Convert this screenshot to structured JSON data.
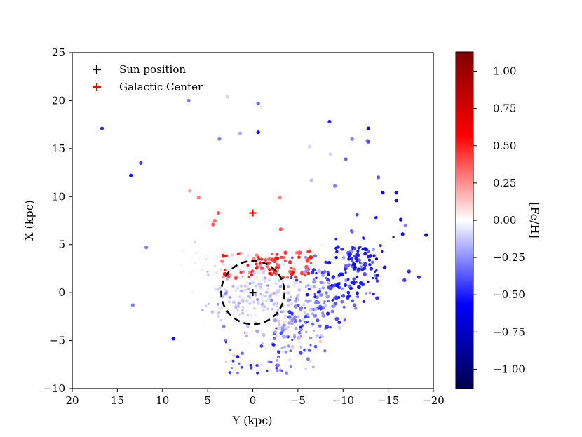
{
  "chart_data": {
    "type": "scatter",
    "title": "",
    "xlabel": "Y (kpc)",
    "ylabel": "X (kpc)",
    "xlim": [
      20,
      -20
    ],
    "ylim": [
      -10,
      25
    ],
    "xticks": [
      20,
      15,
      10,
      5,
      0,
      -5,
      -10,
      -15,
      -20
    ],
    "xtick_labels": [
      "20",
      "15",
      "10",
      "5",
      "0",
      "−5",
      "−10",
      "−15",
      "−20"
    ],
    "yticks": [
      -10,
      -5,
      0,
      5,
      10,
      15,
      20,
      25
    ],
    "ytick_labels": [
      "−10",
      "−5",
      "0",
      "5",
      "10",
      "15",
      "20",
      "25"
    ],
    "grid": false,
    "legend_position": "top-left",
    "legend": [
      {
        "label": "Sun position",
        "marker": "plus",
        "color": "#000000"
      },
      {
        "label": "Galactic Center",
        "marker": "plus",
        "color": "#ff0000"
      }
    ],
    "markers": [
      {
        "name": "Sun position",
        "x": 0,
        "y": 0,
        "color": "#000000"
      },
      {
        "name": "Galactic Center",
        "x": 0,
        "y": 8.3,
        "color": "#ff0000"
      }
    ],
    "circle": {
      "center_x": 0,
      "center_y": 0,
      "radius": 3.5,
      "style": "dashed",
      "color": "#000000"
    },
    "colorbar": {
      "label": "[Fe/H]",
      "min": -1.13,
      "max": 1.13,
      "ticks": [
        -1.0,
        -0.75,
        -0.5,
        -0.25,
        0.0,
        0.25,
        0.5,
        0.75,
        1.0
      ],
      "tick_labels": [
        "−1.00",
        "−0.75",
        "−0.50",
        "−0.25",
        "0.00",
        "0.25",
        "0.50",
        "0.75",
        "1.00"
      ],
      "colormap": "seismic",
      "colormap_stops": [
        "#00004d",
        "#0000ff",
        "#ffffff",
        "#ff0000",
        "#800000"
      ]
    },
    "points_visible_outer": [
      {
        "x": 16.7,
        "y": 17.1,
        "z": -0.5
      },
      {
        "x": 13.5,
        "y": 12.2,
        "z": -0.6
      },
      {
        "x": 12.4,
        "y": 13.5,
        "z": -0.45
      },
      {
        "x": 7.1,
        "y": 20.0,
        "z": -0.3
      },
      {
        "x": 7.0,
        "y": 10.6,
        "z": 0.2
      },
      {
        "x": 6.0,
        "y": 9.9,
        "z": 0.3
      },
      {
        "x": 3.8,
        "y": 8.3,
        "z": 0.4
      },
      {
        "x": 4.2,
        "y": 7.5,
        "z": 0.35
      },
      {
        "x": 4.4,
        "y": 7.1,
        "z": 0.4
      },
      {
        "x": 3.7,
        "y": 16.0,
        "z": -0.3
      },
      {
        "x": 2.8,
        "y": 20.4,
        "z": -0.1
      },
      {
        "x": 1.4,
        "y": 16.6,
        "z": -0.2
      },
      {
        "x": -0.6,
        "y": 19.7,
        "z": -0.35
      },
      {
        "x": -0.6,
        "y": 16.7,
        "z": -0.55
      },
      {
        "x": -0.9,
        "y": 19.3,
        "z": 0.05
      },
      {
        "x": -3.0,
        "y": 9.9,
        "z": 0.3
      },
      {
        "x": -3.1,
        "y": 6.6,
        "z": 0.4
      },
      {
        "x": -6.3,
        "y": 15.2,
        "z": -0.1
      },
      {
        "x": -6.5,
        "y": 11.7,
        "z": -0.15
      },
      {
        "x": -8.5,
        "y": 17.8,
        "z": -0.5
      },
      {
        "x": -8.6,
        "y": 14.4,
        "z": -0.1
      },
      {
        "x": -9.1,
        "y": 11.1,
        "z": -0.3
      },
      {
        "x": -10.3,
        "y": 13.9,
        "z": -0.35
      },
      {
        "x": -11.0,
        "y": 16.0,
        "z": -0.3
      },
      {
        "x": -12.7,
        "y": 15.8,
        "z": -0.3
      },
      {
        "x": -12.8,
        "y": 15.7,
        "z": -0.4
      },
      {
        "x": -12.8,
        "y": 17.1,
        "z": -0.6
      },
      {
        "x": -13.9,
        "y": 12.0,
        "z": -0.4
      },
      {
        "x": -14.4,
        "y": 10.4,
        "z": -0.6
      },
      {
        "x": -15.9,
        "y": 10.4,
        "z": -0.7
      },
      {
        "x": -15.9,
        "y": 9.6,
        "z": -0.7
      },
      {
        "x": -16.4,
        "y": 7.6,
        "z": -0.6
      },
      {
        "x": -16.9,
        "y": 7.0,
        "z": -0.3
      },
      {
        "x": -16.6,
        "y": 6.1,
        "z": -0.7
      },
      {
        "x": -19.2,
        "y": 6.0,
        "z": -0.7
      },
      {
        "x": 11.8,
        "y": 4.7,
        "z": -0.3
      },
      {
        "x": 13.3,
        "y": -1.3,
        "z": -0.3
      },
      {
        "x": 8.8,
        "y": -4.8,
        "z": -0.7
      },
      {
        "x": -16.8,
        "y": 1.3,
        "z": -0.45
      },
      {
        "x": -18.4,
        "y": 1.6,
        "z": -0.5
      },
      {
        "x": -17.3,
        "y": 2.2,
        "z": -0.5
      }
    ]
  }
}
